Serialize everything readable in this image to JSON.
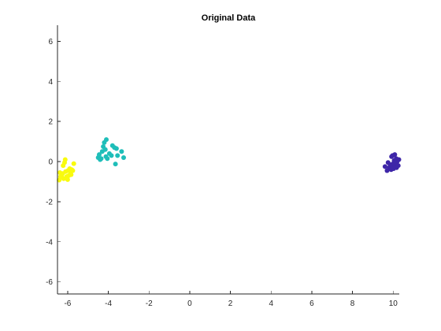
{
  "chart_data": {
    "type": "scatter",
    "title": "Original Data",
    "xlabel": "",
    "ylabel": "",
    "xlim": [
      -6.5,
      10.3
    ],
    "ylim": [
      -6.6,
      6.8
    ],
    "xticks": [
      -6,
      -4,
      -2,
      0,
      2,
      4,
      6,
      8,
      10
    ],
    "yticks": [
      -6,
      -4,
      -2,
      0,
      2,
      4,
      6
    ],
    "grid": false,
    "legend": "none",
    "series": [
      {
        "color": "#f9fb0e",
        "points": [
          [
            -6.42,
            -0.92
          ],
          [
            -6.38,
            -0.55
          ],
          [
            -6.3,
            -0.7
          ],
          [
            -6.25,
            -0.6
          ],
          [
            -6.2,
            -0.85
          ],
          [
            -6.15,
            -0.05
          ],
          [
            -6.12,
            0.1
          ],
          [
            -6.05,
            -0.75
          ],
          [
            -6.1,
            -0.5
          ],
          [
            -6.0,
            -0.9
          ],
          [
            -5.98,
            -0.45
          ],
          [
            -5.95,
            -0.7
          ],
          [
            -5.9,
            -0.35
          ],
          [
            -5.85,
            -0.55
          ],
          [
            -5.83,
            -0.65
          ],
          [
            -5.8,
            -0.4
          ],
          [
            -5.75,
            -0.45
          ],
          [
            -5.7,
            -0.1
          ],
          [
            -6.22,
            -0.2
          ],
          [
            -6.35,
            -0.75
          ]
        ]
      },
      {
        "color": "#1fbeb9",
        "points": [
          [
            -4.5,
            0.2
          ],
          [
            -4.45,
            0.35
          ],
          [
            -4.35,
            0.15
          ],
          [
            -4.3,
            0.5
          ],
          [
            -4.25,
            0.75
          ],
          [
            -4.2,
            0.95
          ],
          [
            -4.15,
            0.6
          ],
          [
            -4.12,
            0.25
          ],
          [
            -4.1,
            1.1
          ],
          [
            -4.05,
            0.15
          ],
          [
            -3.95,
            0.4
          ],
          [
            -3.85,
            0.3
          ],
          [
            -3.8,
            0.8
          ],
          [
            -3.7,
            0.7
          ],
          [
            -3.65,
            -0.12
          ],
          [
            -3.6,
            0.65
          ],
          [
            -3.55,
            0.3
          ],
          [
            -3.35,
            0.5
          ],
          [
            -3.25,
            0.2
          ],
          [
            -4.4,
            0.1
          ]
        ]
      },
      {
        "color": "#3e26a8",
        "points": [
          [
            9.6,
            -0.25
          ],
          [
            9.7,
            -0.45
          ],
          [
            9.75,
            -0.05
          ],
          [
            9.8,
            -0.3
          ],
          [
            9.85,
            -0.15
          ],
          [
            9.9,
            -0.4
          ],
          [
            9.95,
            -0.2
          ],
          [
            9.97,
            0.3
          ],
          [
            10.0,
            -0.1
          ],
          [
            10.02,
            -0.35
          ],
          [
            10.05,
            0.05
          ],
          [
            10.08,
            0.35
          ],
          [
            10.1,
            -0.25
          ],
          [
            10.12,
            -0.05
          ],
          [
            10.15,
            0.15
          ],
          [
            10.17,
            -0.3
          ],
          [
            10.2,
            0.0
          ],
          [
            10.25,
            -0.2
          ],
          [
            10.28,
            0.1
          ],
          [
            9.92,
            0.25
          ]
        ]
      }
    ]
  }
}
